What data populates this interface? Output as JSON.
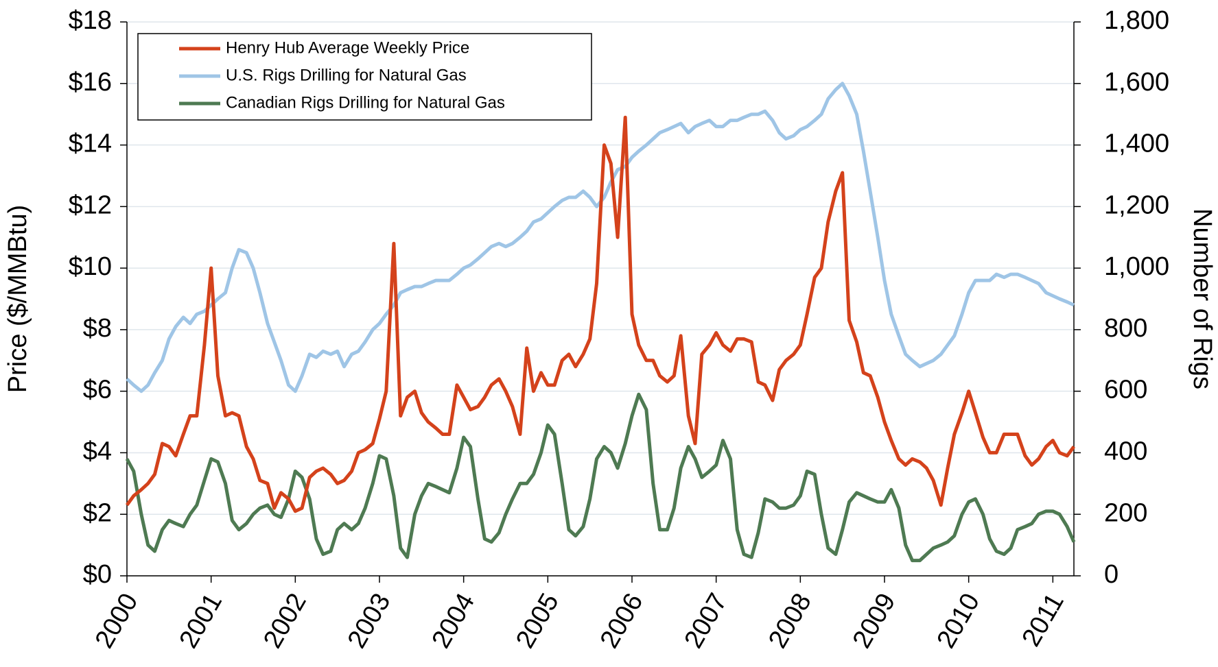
{
  "chart_data": {
    "type": "line",
    "ylabel": "Price ($/MMBtu)",
    "y2label": "Number of Rigs",
    "xlim": [
      2000,
      2011.25
    ],
    "xticks": [
      2000,
      2001,
      2002,
      2003,
      2004,
      2005,
      2006,
      2007,
      2008,
      2009,
      2010,
      2011
    ],
    "ylim": [
      0,
      18
    ],
    "yticks": [
      {
        "value": 0,
        "label": "$0"
      },
      {
        "value": 2,
        "label": "$2"
      },
      {
        "value": 4,
        "label": "$4"
      },
      {
        "value": 6,
        "label": "$6"
      },
      {
        "value": 8,
        "label": "$8"
      },
      {
        "value": 10,
        "label": "$10"
      },
      {
        "value": 12,
        "label": "$12"
      },
      {
        "value": 14,
        "label": "$14"
      },
      {
        "value": 16,
        "label": "$16"
      },
      {
        "value": 18,
        "label": "$18"
      }
    ],
    "y2lim": [
      0,
      1800
    ],
    "y2ticks": [
      0,
      200,
      400,
      600,
      800,
      {
        "value": 1000,
        "label": "1,000"
      },
      {
        "value": 1200,
        "label": "1,200"
      },
      {
        "value": 1400,
        "label": "1,400"
      },
      {
        "value": 1600,
        "label": "1,600"
      },
      {
        "value": 1800,
        "label": "1,800"
      }
    ],
    "grid": true,
    "legend": "upper left",
    "x": [
      2000,
      2000.08,
      2000.17,
      2000.25,
      2000.33,
      2000.42,
      2000.5,
      2000.58,
      2000.67,
      2000.75,
      2000.83,
      2000.92,
      2001,
      2001.08,
      2001.17,
      2001.25,
      2001.33,
      2001.42,
      2001.5,
      2001.58,
      2001.67,
      2001.75,
      2001.83,
      2001.92,
      2002,
      2002.08,
      2002.17,
      2002.25,
      2002.33,
      2002.42,
      2002.5,
      2002.58,
      2002.67,
      2002.75,
      2002.83,
      2002.92,
      2003,
      2003.08,
      2003.17,
      2003.25,
      2003.33,
      2003.42,
      2003.5,
      2003.58,
      2003.67,
      2003.75,
      2003.83,
      2003.92,
      2004,
      2004.08,
      2004.17,
      2004.25,
      2004.33,
      2004.42,
      2004.5,
      2004.58,
      2004.67,
      2004.75,
      2004.83,
      2004.92,
      2005,
      2005.08,
      2005.17,
      2005.25,
      2005.33,
      2005.42,
      2005.5,
      2005.58,
      2005.67,
      2005.75,
      2005.83,
      2005.92,
      2006,
      2006.08,
      2006.17,
      2006.25,
      2006.33,
      2006.42,
      2006.5,
      2006.58,
      2006.67,
      2006.75,
      2006.83,
      2006.92,
      2007,
      2007.08,
      2007.17,
      2007.25,
      2007.33,
      2007.42,
      2007.5,
      2007.58,
      2007.67,
      2007.75,
      2007.83,
      2007.92,
      2008,
      2008.08,
      2008.17,
      2008.25,
      2008.33,
      2008.42,
      2008.5,
      2008.58,
      2008.67,
      2008.75,
      2008.83,
      2008.92,
      2009,
      2009.08,
      2009.17,
      2009.25,
      2009.33,
      2009.42,
      2009.5,
      2009.58,
      2009.67,
      2009.75,
      2009.83,
      2009.92,
      2010,
      2010.08,
      2010.17,
      2010.25,
      2010.33,
      2010.42,
      2010.5,
      2010.58,
      2010.67,
      2010.75,
      2010.83,
      2010.92,
      2011,
      2011.08,
      2011.17,
      2011.25
    ],
    "series": [
      {
        "name": "Henry Hub Average Weekly Price",
        "color": "#d4421b",
        "values": [
          2.3,
          2.6,
          2.8,
          3.0,
          3.3,
          4.3,
          4.2,
          3.9,
          4.6,
          5.2,
          5.2,
          7.5,
          10.0,
          6.5,
          5.2,
          5.3,
          5.2,
          4.2,
          3.8,
          3.1,
          3.0,
          2.2,
          2.7,
          2.5,
          2.1,
          2.2,
          3.2,
          3.4,
          3.5,
          3.3,
          3.0,
          3.1,
          3.4,
          4.0,
          4.1,
          4.3,
          5.1,
          6.0,
          10.8,
          5.2,
          5.8,
          6.0,
          5.3,
          5.0,
          4.8,
          4.6,
          4.6,
          6.2,
          5.8,
          5.4,
          5.5,
          5.8,
          6.2,
          6.4,
          6.0,
          5.5,
          4.6,
          7.4,
          6.0,
          6.6,
          6.2,
          6.2,
          7.0,
          7.2,
          6.8,
          7.2,
          7.7,
          9.5,
          14.0,
          13.4,
          11.0,
          14.9,
          8.5,
          7.5,
          7.0,
          7.0,
          6.5,
          6.3,
          6.5,
          7.8,
          5.2,
          4.3,
          7.2,
          7.5,
          7.9,
          7.5,
          7.3,
          7.7,
          7.7,
          7.6,
          6.3,
          6.2,
          5.7,
          6.7,
          7.0,
          7.2,
          7.5,
          8.5,
          9.7,
          10.0,
          11.5,
          12.5,
          13.1,
          8.3,
          7.6,
          6.6,
          6.5,
          5.8,
          5.0,
          4.4,
          3.8,
          3.6,
          3.8,
          3.7,
          3.5,
          3.1,
          2.3,
          3.5,
          4.6,
          5.3,
          6.0,
          5.3,
          4.5,
          4.0,
          4.0,
          4.6,
          4.6,
          4.6,
          3.9,
          3.6,
          3.8,
          4.2,
          4.4,
          4.0,
          3.9,
          4.2
        ]
      },
      {
        "name": "U.S. Rigs Drilling for Natural Gas",
        "color": "#9fc5e6",
        "axis": "y2",
        "values": [
          640,
          620,
          600,
          620,
          660,
          700,
          770,
          810,
          840,
          820,
          850,
          860,
          880,
          900,
          920,
          1000,
          1060,
          1050,
          1000,
          920,
          820,
          760,
          700,
          620,
          600,
          650,
          720,
          710,
          730,
          720,
          730,
          680,
          720,
          730,
          760,
          800,
          820,
          850,
          880,
          920,
          930,
          940,
          940,
          950,
          960,
          960,
          960,
          980,
          1000,
          1010,
          1030,
          1050,
          1070,
          1080,
          1070,
          1080,
          1100,
          1120,
          1150,
          1160,
          1180,
          1200,
          1220,
          1230,
          1230,
          1250,
          1230,
          1200,
          1230,
          1280,
          1320,
          1330,
          1360,
          1380,
          1400,
          1420,
          1440,
          1450,
          1460,
          1470,
          1440,
          1460,
          1470,
          1480,
          1460,
          1460,
          1480,
          1480,
          1490,
          1500,
          1500,
          1510,
          1480,
          1440,
          1420,
          1430,
          1450,
          1460,
          1480,
          1500,
          1550,
          1580,
          1600,
          1560,
          1500,
          1380,
          1250,
          1100,
          960,
          850,
          780,
          720,
          700,
          680,
          690,
          700,
          720,
          750,
          780,
          850,
          920,
          960,
          960,
          960,
          980,
          970,
          980,
          980,
          970,
          960,
          950,
          920,
          910,
          900,
          890,
          880
        ]
      },
      {
        "name": "Canadian Rigs Drilling for Natural Gas",
        "color": "#4e7a52",
        "axis": "y2",
        "values": [
          380,
          340,
          200,
          100,
          80,
          150,
          180,
          170,
          160,
          200,
          230,
          310,
          380,
          370,
          300,
          180,
          150,
          170,
          200,
          220,
          230,
          200,
          190,
          250,
          340,
          320,
          250,
          120,
          70,
          80,
          150,
          170,
          150,
          170,
          220,
          300,
          390,
          380,
          260,
          90,
          60,
          200,
          260,
          300,
          290,
          280,
          270,
          350,
          450,
          420,
          250,
          120,
          110,
          140,
          200,
          250,
          300,
          300,
          330,
          400,
          490,
          460,
          300,
          150,
          130,
          160,
          250,
          380,
          420,
          400,
          350,
          430,
          520,
          590,
          540,
          300,
          150,
          150,
          220,
          350,
          420,
          380,
          320,
          340,
          360,
          440,
          380,
          150,
          70,
          60,
          140,
          250,
          240,
          220,
          220,
          230,
          260,
          340,
          330,
          200,
          90,
          70,
          150,
          240,
          270,
          260,
          250,
          240,
          240,
          280,
          220,
          100,
          50,
          50,
          70,
          90,
          100,
          110,
          130,
          200,
          240,
          250,
          200,
          120,
          80,
          70,
          90,
          150,
          160,
          170,
          200,
          210,
          210,
          200,
          160,
          110
        ]
      }
    ]
  }
}
